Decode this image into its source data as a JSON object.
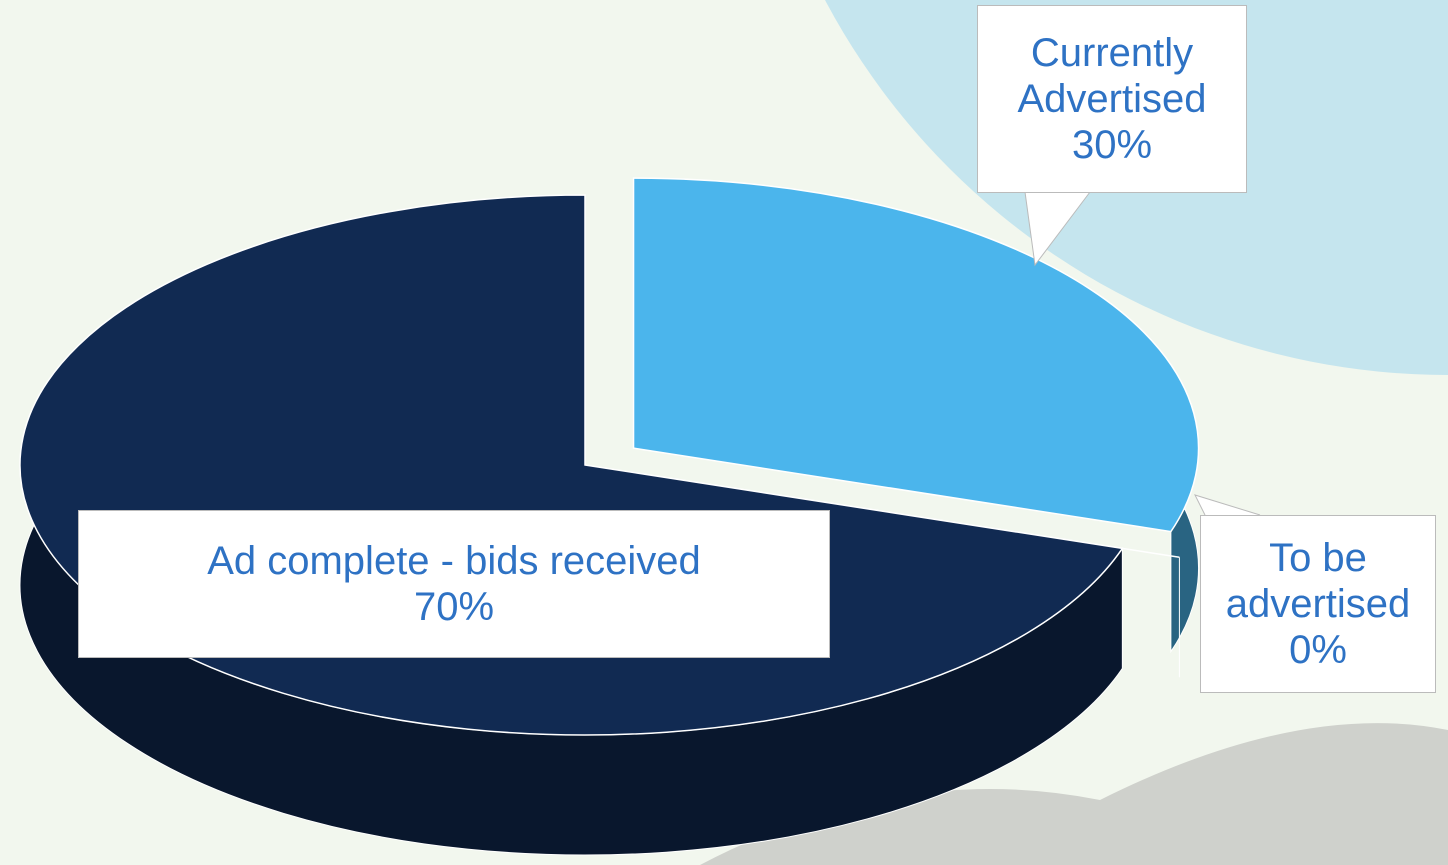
{
  "chart_data": {
    "type": "pie",
    "categories": [
      "Currently Advertised",
      "To be advertised",
      "Ad complete - bids received"
    ],
    "values": [
      30,
      0,
      70
    ],
    "value_labels": [
      "30%",
      "0%",
      "70%"
    ],
    "colors": [
      "#4bb5ec",
      "#434524",
      "#112a52"
    ]
  }
}
